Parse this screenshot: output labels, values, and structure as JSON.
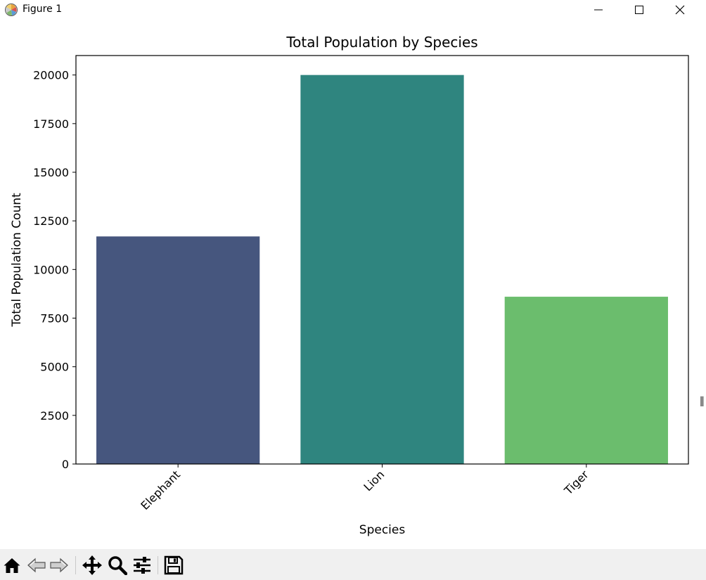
{
  "window": {
    "title": "Figure 1",
    "controls": {
      "minimize": "minimize",
      "maximize": "maximize",
      "close": "close"
    }
  },
  "chart_data": {
    "type": "bar",
    "title": "Total Population by Species",
    "xlabel": "Species",
    "ylabel": "Total Population Count",
    "categories": [
      "Elephant",
      "Lion",
      "Tiger"
    ],
    "values": [
      11700,
      20000,
      8600
    ],
    "colors": [
      "#46567e",
      "#2f857f",
      "#6bbd6d"
    ],
    "ylim": [
      0,
      21000
    ],
    "yticks": [
      0,
      2500,
      5000,
      7500,
      10000,
      12500,
      15000,
      17500,
      20000
    ],
    "ytick_labels": [
      "0",
      "2500",
      "5000",
      "7500",
      "10000",
      "12500",
      "15000",
      "17500",
      "20000"
    ],
    "xtick_rotation": 45,
    "grid": false
  },
  "toolbar": {
    "items": [
      "home-icon",
      "back-icon",
      "forward-icon",
      "pan-icon",
      "zoom-icon",
      "configure-subplots-icon",
      "save-icon"
    ]
  }
}
